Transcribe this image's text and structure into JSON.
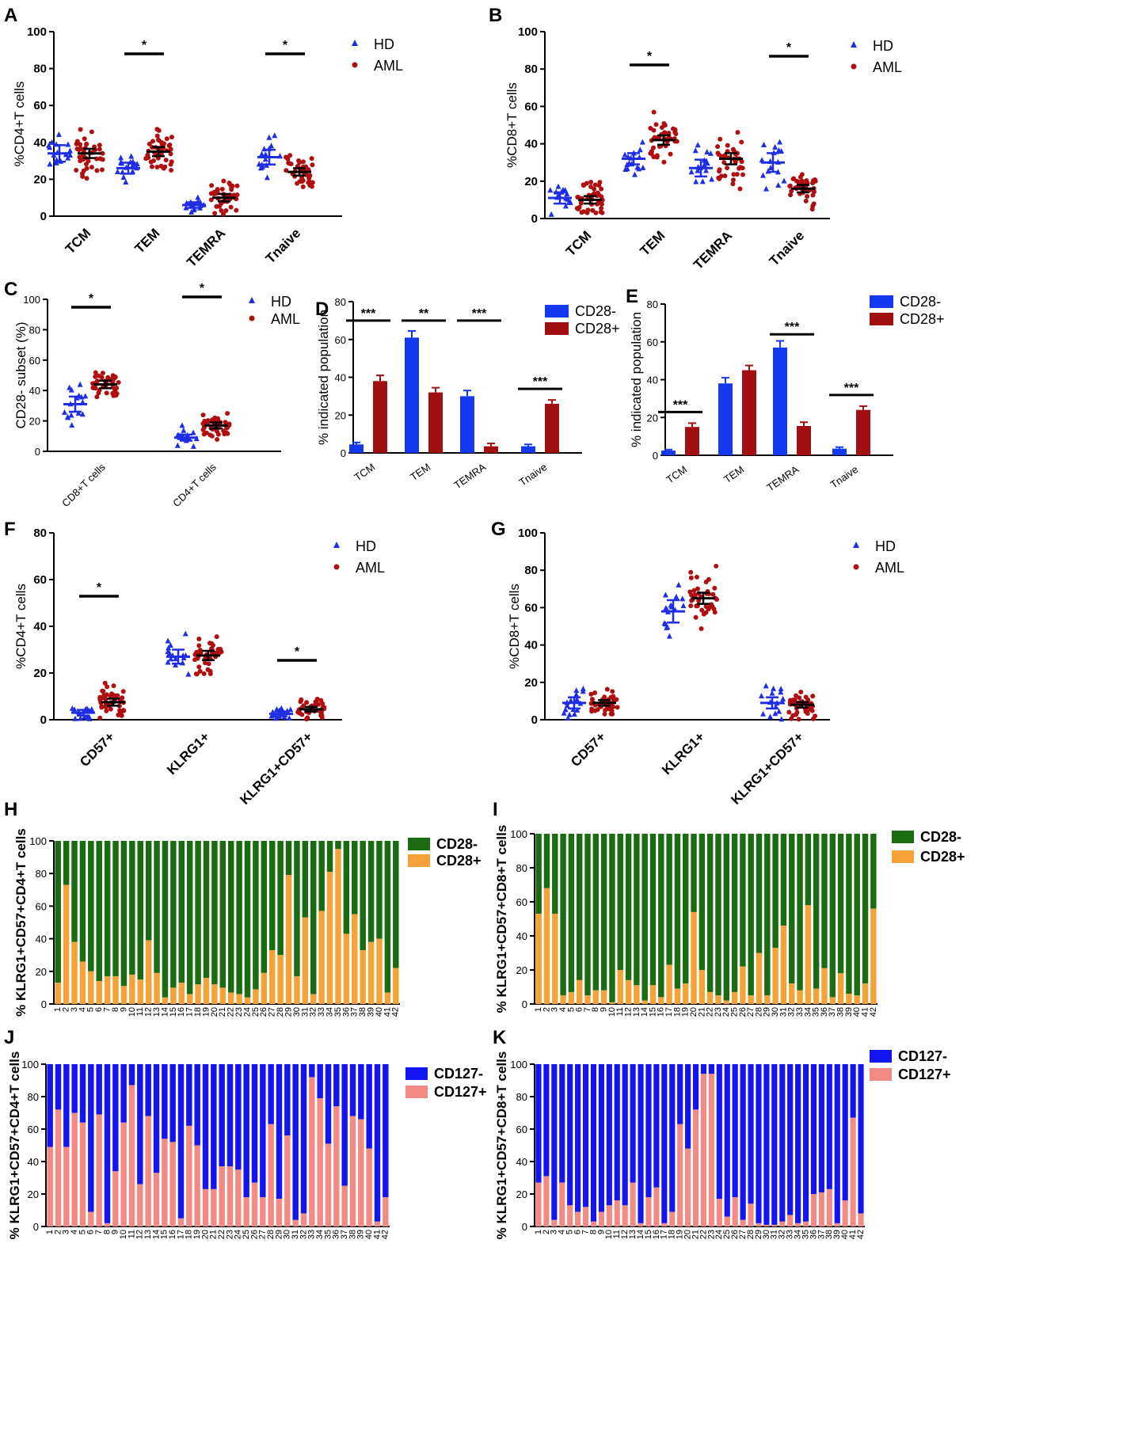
{
  "figure": {
    "colors": {
      "hd": "#1e2de6",
      "aml": "#b00f0f",
      "cd28neg": "#1438f0",
      "cd28pos": "#a01010",
      "green": "#1a6b12",
      "orange": "#f5a338",
      "cd127neg": "#1414f0",
      "cd127pos": "#f48a84",
      "mean": "#000000"
    }
  },
  "chart_data": [
    {
      "id": "A",
      "panel_label": "A",
      "type": "scatter",
      "ylabel": "%CD4+T cells",
      "ylim": [
        0,
        100
      ],
      "yticks": [
        "0",
        "20",
        "40",
        "60",
        "80",
        "100"
      ],
      "categories": [
        "TCM",
        "TEM",
        "TEMRA",
        "Tnaive"
      ],
      "legend": [
        "HD",
        "AML"
      ],
      "series": [
        {
          "name": "HD",
          "mean": [
            34,
            26,
            6,
            32
          ],
          "sem": [
            4.5,
            3.0,
            1.5,
            4.0
          ],
          "n": 16
        },
        {
          "name": "AML",
          "mean": [
            34,
            35,
            10,
            24
          ],
          "sem": [
            2.5,
            2.5,
            2.0,
            2.0
          ],
          "n": 42
        }
      ],
      "significance": [
        {
          "category": "TEM",
          "label": "*"
        },
        {
          "category": "Tnaive",
          "label": "*"
        }
      ]
    },
    {
      "id": "B",
      "panel_label": "B",
      "type": "scatter",
      "ylabel": "%CD8+T cells",
      "ylim": [
        0,
        100
      ],
      "yticks": [
        "0",
        "20",
        "40",
        "60",
        "80",
        "100"
      ],
      "categories": [
        "TCM",
        "TEM",
        "TEMRA",
        "Tnaive"
      ],
      "legend": [
        "HD",
        "AML"
      ],
      "series": [
        {
          "name": "HD",
          "mean": [
            11,
            32,
            27,
            30
          ],
          "sem": [
            3.0,
            3.0,
            4.5,
            5.0
          ],
          "n": 16
        },
        {
          "name": "AML",
          "mean": [
            10,
            42,
            32,
            16
          ],
          "sem": [
            2.0,
            2.5,
            3.0,
            2.0
          ],
          "n": 42
        }
      ],
      "significance": [
        {
          "category": "TEM",
          "label": "*"
        },
        {
          "category": "Tnaive",
          "label": "*"
        }
      ]
    },
    {
      "id": "C",
      "panel_label": "C",
      "type": "scatter",
      "ylabel": "CD28- subset (%)",
      "ylim": [
        0,
        100
      ],
      "yticks": [
        "0",
        "20",
        "40",
        "60",
        "80",
        "100"
      ],
      "categories": [
        "CD8+T cells",
        "CD4+T cells"
      ],
      "legend": [
        "HD",
        "AML"
      ],
      "series": [
        {
          "name": "HD",
          "mean": [
            31,
            9
          ],
          "sem": [
            5.0,
            2.0
          ],
          "n": 16
        },
        {
          "name": "AML",
          "mean": [
            44,
            17
          ],
          "sem": [
            2.5,
            2.0
          ],
          "n": 42
        }
      ],
      "significance": [
        {
          "category": "CD8+T cells",
          "label": "*"
        },
        {
          "category": "CD4+T cells",
          "label": "*"
        }
      ]
    },
    {
      "id": "D",
      "panel_label": "D",
      "type": "bar",
      "ylabel": "% indicated population",
      "ylim": [
        0,
        80
      ],
      "yticks": [
        "0",
        "20",
        "40",
        "60",
        "80"
      ],
      "categories": [
        "TCM",
        "TEM",
        "TEMRA",
        "Tnaive"
      ],
      "legend": [
        "CD28-",
        "CD28+"
      ],
      "series": [
        {
          "name": "CD28-",
          "values": [
            4.5,
            61,
            30,
            3.5
          ],
          "err": [
            1.0,
            3.5,
            3.0,
            1.0
          ]
        },
        {
          "name": "CD28+",
          "values": [
            38,
            32,
            3.5,
            26
          ],
          "err": [
            3.0,
            2.5,
            1.5,
            2.0
          ]
        }
      ],
      "significance": [
        {
          "category": "TCM",
          "label": "***"
        },
        {
          "category": "TEM",
          "label": "**"
        },
        {
          "category": "TEMRA",
          "label": "***"
        },
        {
          "category": "Tnaive",
          "label": "***"
        }
      ]
    },
    {
      "id": "E",
      "panel_label": "E",
      "type": "bar",
      "ylabel": "% indicated population",
      "ylim": [
        0,
        80
      ],
      "yticks": [
        "0",
        "20",
        "40",
        "60",
        "80"
      ],
      "categories": [
        "TCM",
        "TEM",
        "TEMRA",
        "Tnaive"
      ],
      "legend": [
        "CD28-",
        "CD28+"
      ],
      "series": [
        {
          "name": "CD28-",
          "values": [
            2.5,
            38,
            57,
            3.5
          ],
          "err": [
            0.5,
            3.0,
            3.5,
            0.8
          ]
        },
        {
          "name": "CD28+",
          "values": [
            15,
            45,
            15.5,
            24
          ],
          "err": [
            2.0,
            2.5,
            2.0,
            2.0
          ]
        }
      ],
      "significance": [
        {
          "category": "TCM",
          "label": "***"
        },
        {
          "category": "TEMRA",
          "label": "***"
        },
        {
          "category": "Tnaive",
          "label": "***"
        }
      ]
    },
    {
      "id": "F",
      "panel_label": "F",
      "type": "scatter",
      "ylabel": "%CD4+T cells",
      "ylim": [
        0,
        80
      ],
      "yticks": [
        "0",
        "20",
        "40",
        "60",
        "80"
      ],
      "categories": [
        "CD57+",
        "KLRG1+",
        "KLRG1+CD57+"
      ],
      "legend": [
        "HD",
        "AML"
      ],
      "series": [
        {
          "name": "HD",
          "mean": [
            3,
            27,
            2.5
          ],
          "sem": [
            1.2,
            3.0,
            1.0
          ],
          "n": 16
        },
        {
          "name": "AML",
          "mean": [
            7.5,
            27.5,
            4.5
          ],
          "sem": [
            1.5,
            2.0,
            1.0
          ],
          "n": 42
        }
      ],
      "significance": [
        {
          "category": "CD57+",
          "label": "*"
        },
        {
          "category": "KLRG1+CD57+",
          "label": "*"
        }
      ]
    },
    {
      "id": "G",
      "panel_label": "G",
      "type": "scatter",
      "ylabel": "%CD8+T cells",
      "ylim": [
        0,
        100
      ],
      "yticks": [
        "0",
        "20",
        "40",
        "60",
        "80",
        "100"
      ],
      "categories": [
        "CD57+",
        "KLRG1+",
        "KLRG1+CD57+"
      ],
      "legend": [
        "HD",
        "AML"
      ],
      "series": [
        {
          "name": "HD",
          "mean": [
            9,
            58,
            9
          ],
          "sem": [
            3.0,
            6.0,
            3.0
          ],
          "n": 16
        },
        {
          "name": "AML",
          "mean": [
            9,
            65,
            8
          ],
          "sem": [
            1.5,
            3.0,
            1.5
          ],
          "n": 42
        }
      ],
      "significance": []
    },
    {
      "id": "H",
      "panel_label": "H",
      "type": "bar",
      "stacked": true,
      "ylabel": "% KLRG1+CD57+CD4+T cells",
      "ylim": [
        0,
        100
      ],
      "yticks": [
        "0",
        "20",
        "40",
        "60",
        "80",
        "100"
      ],
      "categories": [
        "1",
        "2",
        "3",
        "4",
        "5",
        "6",
        "7",
        "8",
        "9",
        "10",
        "11",
        "12",
        "13",
        "14",
        "15",
        "16",
        "17",
        "18",
        "19",
        "20",
        "21",
        "22",
        "23",
        "24",
        "25",
        "26",
        "27",
        "28",
        "29",
        "30",
        "31",
        "32",
        "33",
        "34",
        "35",
        "36",
        "37",
        "38",
        "39",
        "40",
        "41",
        "42"
      ],
      "legend": [
        "CD28-",
        "CD28+"
      ],
      "series": [
        {
          "name": "CD28+",
          "values": [
            13,
            73,
            38,
            26,
            20,
            14,
            17,
            17,
            11,
            18,
            15,
            39,
            19,
            4,
            10,
            13,
            6,
            12,
            16,
            12,
            10,
            7,
            6,
            4,
            9,
            19,
            33,
            30,
            79,
            17,
            53,
            6,
            57,
            81,
            95,
            43,
            55,
            33,
            38,
            40,
            7,
            22
          ]
        }
      ]
    },
    {
      "id": "I",
      "panel_label": "I",
      "type": "bar",
      "stacked": true,
      "ylabel": "% KLRG1+CD57+CD8+T cells",
      "ylim": [
        0,
        100
      ],
      "yticks": [
        "0",
        "20",
        "40",
        "60",
        "80",
        "100"
      ],
      "categories": [
        "1",
        "2",
        "3",
        "4",
        "5",
        "6",
        "7",
        "8",
        "9",
        "10",
        "11",
        "12",
        "13",
        "14",
        "15",
        "16",
        "17",
        "18",
        "19",
        "20",
        "21",
        "22",
        "23",
        "24",
        "25",
        "26",
        "27",
        "28",
        "29",
        "30",
        "31",
        "32",
        "33",
        "34",
        "35",
        "36",
        "37",
        "38",
        "39",
        "40",
        "41",
        "42"
      ],
      "legend": [
        "CD28-",
        "CD28+"
      ],
      "series": [
        {
          "name": "CD28+",
          "values": [
            53,
            68,
            53,
            5,
            7,
            14,
            5,
            8,
            8,
            1,
            20,
            14,
            11,
            2,
            11,
            4,
            23,
            9,
            12,
            54,
            20,
            7,
            5,
            2,
            7,
            22,
            5,
            30,
            5,
            33,
            46,
            12,
            8,
            58,
            9,
            21,
            4,
            18,
            6,
            5,
            12,
            56
          ]
        }
      ]
    },
    {
      "id": "J",
      "panel_label": "J",
      "type": "bar",
      "stacked": true,
      "ylabel": "% KLRG1+CD57+CD4+T cells",
      "ylim": [
        0,
        100
      ],
      "yticks": [
        "0",
        "20",
        "40",
        "60",
        "80",
        "100"
      ],
      "categories": [
        "1",
        "2",
        "3",
        "4",
        "5",
        "6",
        "7",
        "8",
        "9",
        "10",
        "11",
        "12",
        "13",
        "14",
        "15",
        "16",
        "17",
        "18",
        "19",
        "20",
        "21",
        "22",
        "23",
        "24",
        "25",
        "26",
        "27",
        "28",
        "29",
        "30",
        "31",
        "32",
        "33",
        "34",
        "35",
        "36",
        "37",
        "38",
        "39",
        "40",
        "41",
        "42"
      ],
      "legend": [
        "CD127-",
        "CD127+"
      ],
      "series": [
        {
          "name": "CD127+",
          "values": [
            49,
            72,
            49,
            70,
            64,
            9,
            69,
            2,
            34,
            64,
            87,
            26,
            68,
            33,
            54,
            52,
            5,
            62,
            50,
            23,
            23,
            37,
            37,
            35,
            18,
            27,
            18,
            63,
            17,
            56,
            4,
            8,
            92,
            79,
            51,
            74,
            25,
            68,
            66,
            48,
            3,
            18
          ]
        }
      ]
    },
    {
      "id": "K",
      "panel_label": "K",
      "type": "bar",
      "stacked": true,
      "ylabel": "% KLRG1+CD57+CD8+T cells",
      "ylim": [
        0,
        100
      ],
      "yticks": [
        "0",
        "20",
        "40",
        "60",
        "80",
        "100"
      ],
      "categories": [
        "1",
        "2",
        "3",
        "4",
        "5",
        "6",
        "7",
        "8",
        "9",
        "10",
        "11",
        "12",
        "13",
        "14",
        "15",
        "16",
        "17",
        "18",
        "19",
        "20",
        "21",
        "22",
        "23",
        "24",
        "25",
        "26",
        "27",
        "28",
        "29",
        "30",
        "31",
        "32",
        "33",
        "34",
        "35",
        "36",
        "37",
        "38",
        "39",
        "40",
        "41",
        "42"
      ],
      "legend": [
        "CD127-",
        "CD127+"
      ],
      "series": [
        {
          "name": "CD127+",
          "values": [
            27,
            31,
            4,
            27,
            13,
            9,
            12,
            3,
            9,
            13,
            16,
            13,
            27,
            2,
            18,
            24,
            2,
            9,
            63,
            48,
            72,
            94,
            94,
            17,
            6,
            18,
            4,
            14,
            2,
            1,
            1,
            3,
            7,
            2,
            3,
            20,
            21,
            23,
            2,
            16,
            67,
            8
          ]
        }
      ]
    }
  ]
}
